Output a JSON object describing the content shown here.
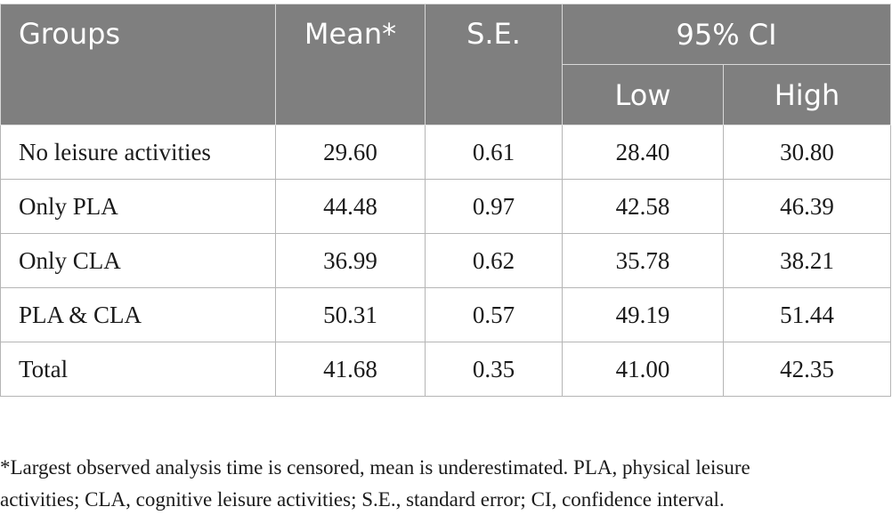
{
  "table": {
    "headers": {
      "groups": "Groups",
      "mean": "Mean*",
      "se": "S.E.",
      "ci": "95% CI",
      "low": "Low",
      "high": "High"
    },
    "rows": [
      {
        "group": "No leisure activities",
        "mean": "29.60",
        "se": "0.61",
        "low": "28.40",
        "high": "30.80"
      },
      {
        "group": "Only PLA",
        "mean": "44.48",
        "se": "0.97",
        "low": "42.58",
        "high": "46.39"
      },
      {
        "group": "Only CLA",
        "mean": "36.99",
        "se": "0.62",
        "low": "35.78",
        "high": "38.21"
      },
      {
        "group": "PLA & CLA",
        "mean": "50.31",
        "se": "0.57",
        "low": "49.19",
        "high": "51.44"
      },
      {
        "group": "Total",
        "mean": "41.68",
        "se": "0.35",
        "low": "41.00",
        "high": "42.35"
      }
    ]
  },
  "footnote": {
    "line1": "*Largest observed analysis time is censored, mean is underestimated. PLA, physical leisure",
    "line2": "activities; CLA, cognitive leisure activities; S.E., standard error; CI, confidence interval."
  }
}
